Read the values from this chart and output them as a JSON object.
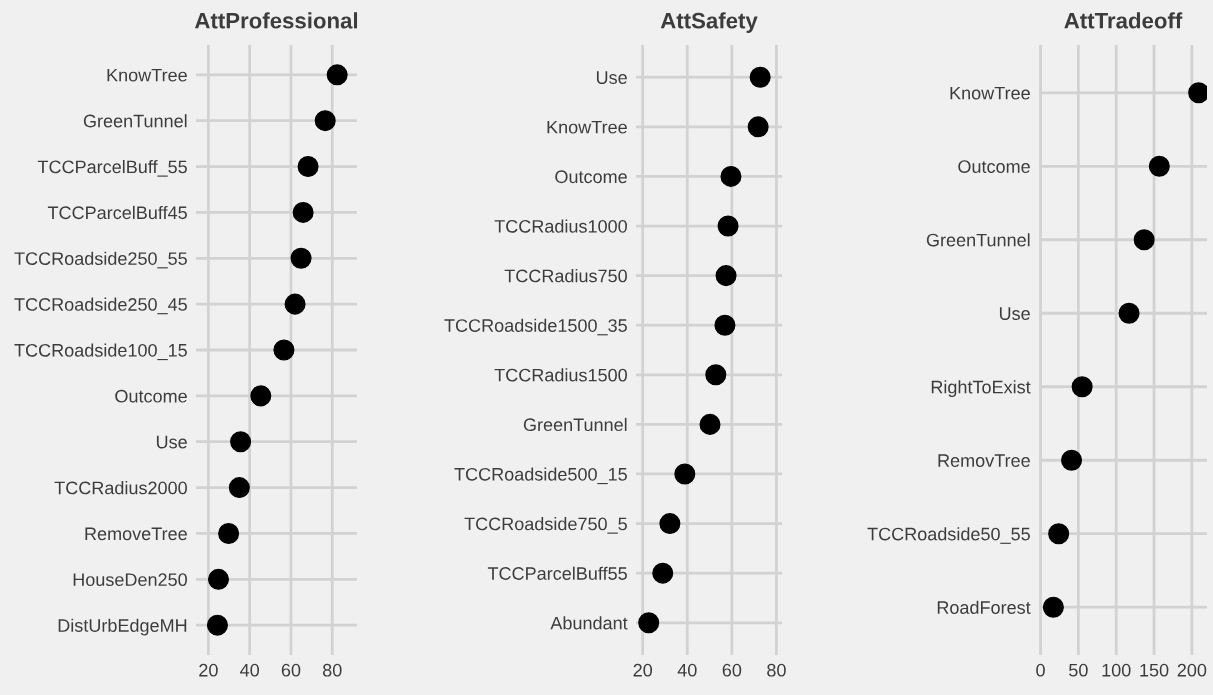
{
  "chart_data": [
    {
      "type": "scatter",
      "orientation": "horizontal",
      "title": "AttProfessional",
      "categories": [
        "KnowTree",
        "GreenTunnel",
        "TCCParcelBuff_55",
        "TCCParcelBuff45",
        "TCCRoadside250_55",
        "TCCRoadside250_45",
        "TCCRoadside100_15",
        "Outcome",
        "Use",
        "TCCRadius2000",
        "RemoveTree",
        "HouseDen250",
        "DistUrbEdgeMH"
      ],
      "series": [
        {
          "color": "#000000",
          "values": [
            82.4,
            76.6,
            68.3,
            65.9,
            64.9,
            62,
            56.6,
            45.4,
            35.6,
            35,
            29.8,
            24.9,
            24.4
          ]
        }
      ],
      "xlim": [
        14,
        92
      ],
      "xticks": [
        20,
        40,
        60,
        80
      ],
      "grid": true,
      "marker": "circle"
    },
    {
      "type": "scatter",
      "orientation": "horizontal",
      "title": "AttSafety",
      "categories": [
        "Use",
        "KnowTree",
        "Outcome",
        "TCCRadius1000",
        "TCCRadius750",
        "TCCRoadside1500_35",
        "TCCRadius1500",
        "GreenTunnel",
        "TCCRoadside500_15",
        "TCCRoadside750_5",
        "TCCParcelBuff55",
        "Abundant"
      ],
      "series": [
        {
          "color": "#000000",
          "values": [
            72.7,
            71.8,
            59.6,
            58.3,
            57.4,
            56.9,
            52.8,
            50.2,
            38.9,
            32.2,
            29,
            22.7
          ]
        }
      ],
      "xlim": [
        17,
        82.5
      ],
      "xticks": [
        20,
        40,
        60,
        80
      ],
      "grid": true,
      "marker": "circle"
    },
    {
      "type": "scatter",
      "orientation": "horizontal",
      "title": "AttTradeoff",
      "categories": [
        "KnowTree",
        "Outcome",
        "GreenTunnel",
        "Use",
        "RightToExist",
        "RemovTree",
        "TCCRoadside50_55",
        "RoadForest"
      ],
      "series": [
        {
          "color": "#000000",
          "values": [
            209,
            157,
            137,
            117,
            55,
            41,
            24,
            17
          ]
        }
      ],
      "xlim": [
        -2,
        220
      ],
      "xticks": [
        0,
        50,
        100,
        150,
        200
      ],
      "grid": true,
      "marker": "circle"
    }
  ]
}
